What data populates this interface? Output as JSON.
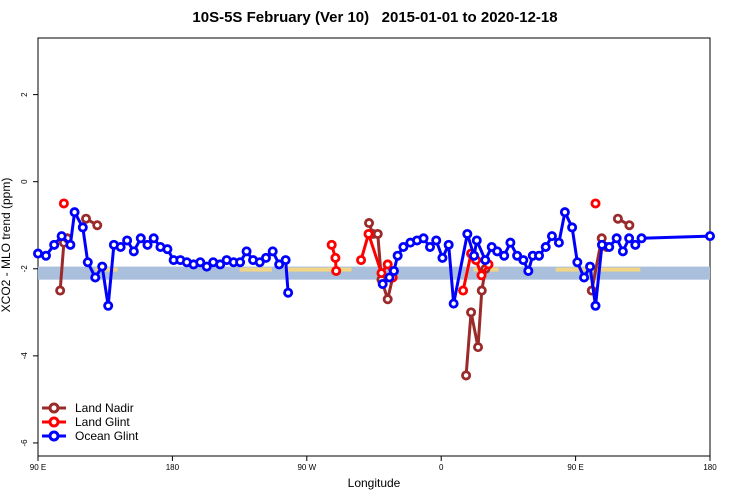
{
  "chart_data": {
    "type": "line",
    "title": "10S-5S February (Ver 10)   2015-01-01 to 2020-12-18",
    "xlabel": "Longitude",
    "ylabel": "XCO2 - MLO trend (ppm)",
    "xlim": [
      -90,
      180
    ],
    "ylim": [
      -6.3,
      3.3
    ],
    "x_ticks": [
      -90,
      -36,
      18,
      72,
      126,
      180
    ],
    "x_tick_labels": [
      "90 E",
      "180",
      "90 W",
      "0",
      "90 E",
      "180"
    ],
    "y_ticks": [
      -6,
      -4,
      -2,
      0,
      2
    ],
    "y_tick_labels": [
      "-6",
      "-4",
      "-2",
      "0",
      "2"
    ],
    "grid": false,
    "legend_position": "bottom-left",
    "reference_band": {
      "y_low": -2.25,
      "y_high": -1.95,
      "color": "#a9bfdc",
      "highlight_color": "#f8d77a"
    },
    "series": [
      {
        "name": "Land Nadir",
        "color": "#9b2a2a",
        "segments": [
          [
            [
              -81.1,
              -2.5
            ],
            [
              -79.6,
              -1.4
            ],
            [
              -78.2,
              -1.3
            ]
          ],
          [
            [
              -70.7,
              -0.85
            ],
            [
              -66.2,
              -1.0
            ]
          ],
          [
            [
              43.0,
              -0.95
            ],
            [
              44.5,
              -1.2
            ],
            [
              46.5,
              -1.2
            ],
            [
              48.0,
              -2.25
            ],
            [
              50.5,
              -2.7
            ],
            [
              52.5,
              -2.2
            ]
          ],
          [
            [
              82.0,
              -4.45
            ],
            [
              84.0,
              -3.0
            ],
            [
              86.8,
              -3.8
            ],
            [
              88.3,
              -2.5
            ],
            [
              89.8,
              -2.0
            ]
          ],
          [
            [
              132.5,
              -2.5
            ],
            [
              136.5,
              -1.3
            ],
            [
              138.5,
              -1.5
            ]
          ],
          [
            [
              143.0,
              -0.85
            ],
            [
              147.6,
              -1.0
            ]
          ]
        ]
      },
      {
        "name": "Land Glint",
        "color": "#ff0000",
        "segments": [
          [
            [
              -79.6,
              -0.5
            ]
          ],
          [
            [
              28.0,
              -1.45
            ],
            [
              29.5,
              -1.75
            ],
            [
              29.8,
              -2.05
            ]
          ],
          [
            [
              39.8,
              -1.8
            ],
            [
              42.8,
              -1.2
            ],
            [
              48.0,
              -2.1
            ],
            [
              50.5,
              -1.9
            ],
            [
              52.5,
              -2.2
            ]
          ],
          [
            [
              80.8,
              -2.5
            ],
            [
              84.0,
              -1.65
            ],
            [
              86.0,
              -1.8
            ],
            [
              88.2,
              -2.15
            ],
            [
              91.0,
              -1.9
            ]
          ],
          [
            [
              134.0,
              -0.5
            ]
          ]
        ]
      },
      {
        "name": "Ocean Glint",
        "color": "#0000ff",
        "segments": [
          [
            [
              -90.0,
              -1.65
            ],
            [
              -86.8,
              -1.7
            ],
            [
              -83.5,
              -1.45
            ],
            [
              -80.5,
              -1.25
            ],
            [
              -77.0,
              -1.45
            ],
            [
              -75.3,
              -0.7
            ],
            [
              -72.0,
              -1.05
            ],
            [
              -70.0,
              -1.85
            ],
            [
              -67.0,
              -2.2
            ],
            [
              -64.2,
              -1.95
            ],
            [
              -61.8,
              -2.85
            ],
            [
              -59.5,
              -1.45
            ],
            [
              -56.8,
              -1.5
            ],
            [
              -54.2,
              -1.35
            ],
            [
              -51.5,
              -1.6
            ],
            [
              -48.7,
              -1.3
            ],
            [
              -46.0,
              -1.45
            ],
            [
              -43.5,
              -1.3
            ],
            [
              -40.8,
              -1.5
            ],
            [
              -38.0,
              -1.55
            ],
            [
              -35.5,
              -1.8
            ],
            [
              -32.8,
              -1.8
            ],
            [
              -30.2,
              -1.85
            ],
            [
              -27.5,
              -1.9
            ],
            [
              -24.8,
              -1.85
            ],
            [
              -22.2,
              -1.95
            ],
            [
              -19.6,
              -1.85
            ],
            [
              -16.8,
              -1.9
            ],
            [
              -14.2,
              -1.8
            ],
            [
              -11.4,
              -1.85
            ],
            [
              -8.8,
              -1.85
            ],
            [
              -6.2,
              -1.6
            ],
            [
              -3.6,
              -1.8
            ],
            [
              -0.9,
              -1.85
            ],
            [
              1.6,
              -1.75
            ],
            [
              4.3,
              -1.6
            ],
            [
              6.9,
              -1.9
            ],
            [
              9.5,
              -1.8
            ],
            [
              10.5,
              -2.55
            ]
          ],
          [
            [
              48.5,
              -2.35
            ],
            [
              51.2,
              -2.2
            ],
            [
              53.0,
              -2.05
            ],
            [
              54.5,
              -1.7
            ],
            [
              56.8,
              -1.5
            ],
            [
              59.6,
              -1.4
            ],
            [
              62.3,
              -1.35
            ],
            [
              64.9,
              -1.3
            ],
            [
              67.5,
              -1.5
            ],
            [
              70.0,
              -1.35
            ],
            [
              72.5,
              -1.75
            ],
            [
              75.0,
              -1.45
            ],
            [
              77.0,
              -2.8
            ],
            [
              82.5,
              -1.2
            ],
            [
              85.2,
              -1.7
            ],
            [
              86.3,
              -1.35
            ],
            [
              89.7,
              -1.8
            ],
            [
              92.3,
              -1.5
            ],
            [
              94.5,
              -1.6
            ],
            [
              97.3,
              -1.7
            ],
            [
              99.8,
              -1.4
            ],
            [
              102.5,
              -1.7
            ],
            [
              105.0,
              -1.8
            ],
            [
              107.0,
              -2.05
            ],
            [
              108.8,
              -1.7
            ],
            [
              111.3,
              -1.7
            ],
            [
              114.0,
              -1.5
            ],
            [
              116.5,
              -1.25
            ],
            [
              119.3,
              -1.4
            ],
            [
              121.7,
              -0.7
            ],
            [
              124.6,
              -1.05
            ],
            [
              126.7,
              -1.85
            ],
            [
              129.4,
              -2.2
            ],
            [
              131.8,
              -1.95
            ],
            [
              134.0,
              -2.85
            ],
            [
              136.6,
              -1.45
            ],
            [
              139.5,
              -1.5
            ],
            [
              142.5,
              -1.3
            ],
            [
              145.0,
              -1.6
            ],
            [
              147.5,
              -1.3
            ],
            [
              150.0,
              -1.45
            ],
            [
              152.5,
              -1.3
            ],
            [
              180.0,
              -1.25
            ]
          ]
        ]
      }
    ]
  }
}
